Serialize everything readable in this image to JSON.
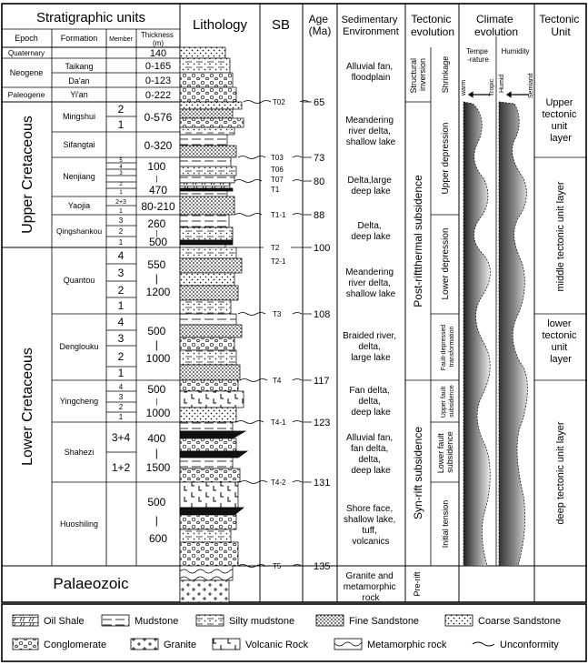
{
  "headers": {
    "strat_units": "Stratigraphic units",
    "epoch": "Epoch",
    "formation": "Formation",
    "member": "Member",
    "thickness": [
      "Thickness",
      "(m)"
    ],
    "lithology": "Lithology",
    "sb": "SB",
    "age": [
      "Age",
      "(Ma)"
    ],
    "sed_env": [
      "Sedimentary",
      "Environment"
    ],
    "tectonic_evolution": [
      "Tectonic",
      "evolution"
    ],
    "climate_evolution": [
      "Climate",
      "evolution"
    ],
    "tectonic_unit": [
      "Tectonic",
      "Unit"
    ],
    "temperature": [
      "Tempe",
      "-rature"
    ],
    "humidity": "Humidity",
    "warm": "warm",
    "tropic": "Tropic",
    "humid": "Humid",
    "semiarid": "Semiarid"
  },
  "epochs": {
    "quaternary": "Quaternary",
    "neogene": "Neogene",
    "paleogene": "Paleogene",
    "upper_cretaceous": "Upper Cretaceous",
    "lower_cretaceous": "Lower Cretaceous",
    "palaeozoic": "Palaeozoic"
  },
  "formations": {
    "taikang": "Taikang",
    "daan": "Da'an",
    "yian": "Yi'an",
    "mingshui": "Mingshui",
    "sifangtai": "Sifangtai",
    "nenjiang": "Nenjiang",
    "yaojia": "Yaojia",
    "qingshankou": "Qingshankou",
    "quantou": "Quantou",
    "denglouku": "Denglouku",
    "yingcheng": "Yingcheng",
    "shahezi": "Shahezi",
    "huoshiling": "Huoshiling"
  },
  "members": {
    "mingshui": [
      "2",
      "1"
    ],
    "nenjiang": [
      "5",
      "4",
      "3",
      "2",
      "1"
    ],
    "yaojia": [
      "2+3",
      "1"
    ],
    "qingshankou": [
      "3",
      "2",
      "1"
    ],
    "quantou": [
      "4",
      "3",
      "2",
      "1"
    ],
    "denglouku": [
      "4",
      "3",
      "2",
      "1"
    ],
    "yingcheng": [
      "4",
      "3",
      "2",
      "1"
    ],
    "shahezi": [
      "3+4",
      "1+2"
    ]
  },
  "thickness": {
    "quaternary": "140",
    "taikang": "0-165",
    "daan": "0-123",
    "yian": "0-222",
    "mingshui": "0-576",
    "sifangtai": "0-320",
    "nenjiang": [
      "100",
      "|",
      "470"
    ],
    "yaojia": "80-210",
    "qingshankou": [
      "260",
      "|",
      "500"
    ],
    "quantou": [
      "550",
      "|",
      "1200"
    ],
    "denglouku": [
      "500",
      "|",
      "1000"
    ],
    "yingcheng": [
      "500",
      "|",
      "1000"
    ],
    "shahezi": [
      "400",
      "|",
      "1500"
    ],
    "huoshiling": [
      "500",
      "|",
      "600"
    ]
  },
  "sequence_boundaries": {
    "t02": "T02",
    "t03": "T03",
    "t06": "T06",
    "t07": "T07",
    "t1": "T1",
    "t1_1": "T1-1",
    "t2": "T2",
    "t2_1": "T2-1",
    "t3": "T3",
    "t4": "T4",
    "t4_1": "T4-1",
    "t4_2": "T4-2",
    "t5": "T5"
  },
  "ages": {
    "a65": "65",
    "a73": "73",
    "a80": "80",
    "a88": "88",
    "a100": "100",
    "a108": "108",
    "a117": "117",
    "a123": "123",
    "a131": "131",
    "a135": "135"
  },
  "environments": {
    "alluvial_fan_floodplain": [
      "Alluvial fan,",
      "floodplain"
    ],
    "meandering_1": [
      "Meandering",
      "river delta,",
      "shallow lake"
    ],
    "delta_large_deep": [
      "Delta,large",
      "deep lake"
    ],
    "delta_deep": [
      "Delta,",
      "deep lake"
    ],
    "meandering_2": [
      "Meandering",
      "river delta,",
      "shallow lake"
    ],
    "braided": [
      "Braided river,",
      "delta,",
      "large lake"
    ],
    "fan_delta": [
      "Fan delta,",
      "delta,",
      "deep lake"
    ],
    "alluvial_fan_delta": [
      "Alluvial fan,",
      "fan delta,",
      "delta,",
      "deep lake"
    ],
    "shore_face": [
      "Shore face,",
      "shallow lake,",
      "tuff,",
      "volcanics"
    ],
    "granite_metamorphic": [
      "Granite and",
      "metamorphic",
      "rock"
    ]
  },
  "tectonic": {
    "structural_inversion": [
      "Structural",
      "inversion"
    ],
    "shrinkage": "Shrinkage",
    "post_rift": "Post-riftthermal subsidence",
    "upper_depression": "Upper depression",
    "lower_depression": "Lower depression",
    "fault_depressed": [
      "Fault-depressed",
      "transformation"
    ],
    "syn_rift": "Syn-rift subsidence",
    "upper_fault": [
      "Upper fault",
      "subsidence"
    ],
    "lower_fault": [
      "Lower fault",
      "subsidence"
    ],
    "initial_tension": "Initial tension",
    "pre_rift": "Pre-rift"
  },
  "tectonic_units": {
    "upper": [
      "Upper",
      "tectonic",
      "unit",
      "layer"
    ],
    "middle": "middle tectonic unit layer",
    "lower": [
      "lower",
      "tectonic",
      "unit",
      "layer"
    ],
    "deep": "deep tectonic unit layer"
  },
  "legend": {
    "oil_shale": "Oil Shale",
    "mudstone": "Mudstone",
    "silty_mudstone": "Silty mudstone",
    "fine_sandstone": "Fine Sandstone",
    "coarse_sandstone": "Coarse Sandstone",
    "conglomerate": "Conglomerate",
    "granite": "Granite",
    "volcanic_rock": "Volcanic Rock",
    "metamorphic_rock": "Metamorphic rock",
    "unconformity": "Unconformity"
  }
}
